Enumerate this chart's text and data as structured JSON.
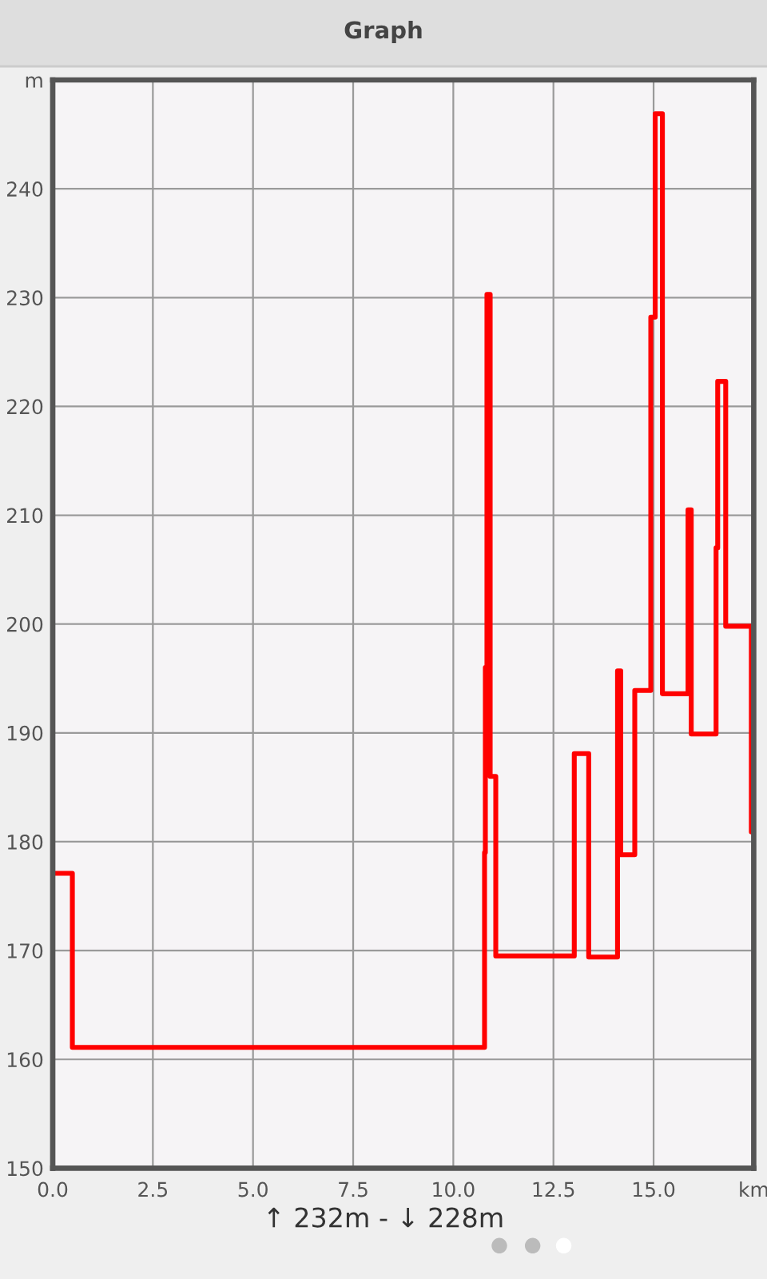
{
  "chart_data": {
    "type": "step",
    "title": "Graph",
    "x": [
      0,
      0.49,
      10.78,
      10.8,
      10.84,
      10.92,
      11.06,
      13.02,
      13.38,
      14.1,
      14.18,
      14.53,
      14.93,
      15.04,
      15.22,
      15.86,
      15.94,
      16.56,
      16.6,
      16.8,
      17.44,
      17.5
    ],
    "series": [
      {
        "color": "#ff0000",
        "values": [
          177.1,
          161.1,
          179,
          196,
          230.3,
          186,
          169.5,
          188.1,
          169.4,
          195.7,
          178.8,
          193.9,
          228.2,
          246.9,
          193.6,
          210.5,
          189.9,
          207,
          222.3,
          199.8,
          180.9,
          180.9
        ]
      }
    ],
    "xlim": [
      0,
      17.5
    ],
    "ylim": [
      150,
      250
    ],
    "xticks": [
      {
        "value": 0,
        "label": "0.0"
      },
      2.5,
      {
        "value": 5,
        "label": "5.0"
      },
      7.5,
      {
        "value": 10,
        "label": "10.0"
      },
      12.5,
      {
        "value": 15,
        "label": "15.0"
      },
      {
        "value": 17.5,
        "label": "km"
      }
    ],
    "yticks": [
      150,
      160,
      170,
      180,
      190,
      200,
      210,
      220,
      230,
      240,
      {
        "value": 250,
        "label": "m"
      }
    ],
    "grid": true,
    "line_style": "solid",
    "annotations": [
      "↑ 232m - ↓ 228m"
    ]
  }
}
